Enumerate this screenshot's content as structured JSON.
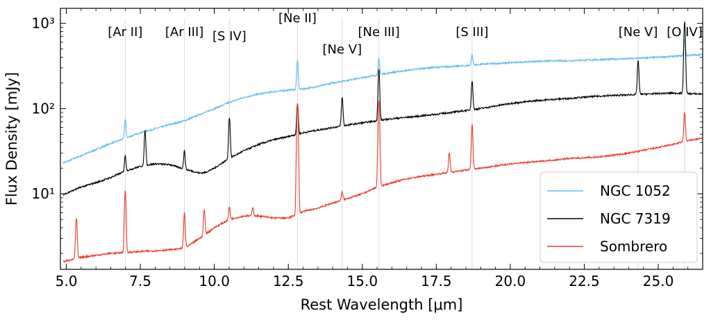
{
  "chart_data": {
    "type": "line",
    "xlabel": "Rest Wavelength [μm]",
    "ylabel": "Flux Density [mJy]",
    "xlim": [
      4.8,
      26.5
    ],
    "ylim": [
      1.3,
      1500
    ],
    "yscale": "log",
    "grid": false,
    "legend_position": "bottom-right",
    "x_ticks": [
      5.0,
      7.5,
      10.0,
      12.5,
      15.0,
      17.5,
      20.0,
      22.5,
      25.0
    ],
    "x_tick_labels": [
      "5.0",
      "7.5",
      "10.0",
      "12.5",
      "15.0",
      "17.5",
      "20.0",
      "22.5",
      "25.0"
    ],
    "y_ticks": [
      10,
      100,
      1000
    ],
    "y_tick_labels": [
      "10¹",
      "10²",
      "10³"
    ],
    "line_markers": [
      {
        "label": "[Ar II]",
        "x": 6.99
      },
      {
        "label": "[Ar III]",
        "x": 8.99
      },
      {
        "label": "[S IV]",
        "x": 10.51
      },
      {
        "label": "[Ne II]",
        "x": 12.81
      },
      {
        "label": "[Ne V]",
        "x": 14.32
      },
      {
        "label": "[Ne III]",
        "x": 15.56
      },
      {
        "label": "[S III]",
        "x": 18.71
      },
      {
        "label": "[Ne V]",
        "x": 24.32
      },
      {
        "label": "[O IV]",
        "x": 25.89
      }
    ],
    "series": [
      {
        "name": "NGC 1052",
        "color": "#5bbcf0",
        "x": [
          4.9,
          5.5,
          6.0,
          6.5,
          7.0,
          7.5,
          8.0,
          8.5,
          9.0,
          9.5,
          10.0,
          10.5,
          11.0,
          11.5,
          12.0,
          12.5,
          13.0,
          13.5,
          14.0,
          14.5,
          15.0,
          15.5,
          16.0,
          16.5,
          17.0,
          17.5,
          18.0,
          18.5,
          19.0,
          20.0,
          21.0,
          22.0,
          23.0,
          24.0,
          25.0,
          25.5,
          26.0,
          26.5
        ],
        "y": [
          23,
          28,
          33,
          39,
          45,
          52,
          58,
          65,
          72,
          85,
          100,
          118,
          135,
          148,
          158,
          165,
          170,
          182,
          200,
          215,
          230,
          248,
          265,
          280,
          295,
          305,
          312,
          318,
          330,
          345,
          360,
          365,
          375,
          385,
          400,
          410,
          420,
          430
        ],
        "peaks": [
          {
            "x": 6.99,
            "y": 75
          },
          {
            "x": 12.81,
            "y": 360
          },
          {
            "x": 15.56,
            "y": 380
          },
          {
            "x": 18.71,
            "y": 430
          },
          {
            "x": 25.89,
            "y": 650
          }
        ]
      },
      {
        "name": "NGC 7319",
        "color": "#000000",
        "x": [
          4.9,
          5.5,
          6.0,
          6.5,
          7.0,
          7.5,
          8.0,
          8.5,
          9.0,
          9.5,
          9.7,
          10.0,
          10.5,
          11.0,
          11.5,
          12.0,
          12.5,
          13.0,
          13.5,
          14.0,
          14.5,
          15.0,
          15.5,
          16.0,
          17.0,
          18.0,
          19.0,
          20.0,
          21.0,
          22.0,
          23.0,
          24.0,
          25.0,
          25.5,
          26.0,
          26.5
        ],
        "y": [
          9.8,
          12.0,
          13.5,
          15.5,
          18.5,
          21.0,
          22.5,
          22.0,
          19.5,
          17.5,
          17.8,
          20.0,
          26.0,
          32.0,
          38.0,
          43.0,
          47.0,
          52.0,
          56.0,
          60.0,
          64.0,
          68.0,
          72.0,
          76.0,
          82.0,
          90.0,
          100.0,
          115.0,
          125.0,
          132.0,
          140.0,
          145.0,
          150.0,
          152.0,
          150.0,
          148.0
        ],
        "peaks": [
          {
            "x": 6.99,
            "y": 28
          },
          {
            "x": 7.66,
            "y": 55
          },
          {
            "x": 8.99,
            "y": 32
          },
          {
            "x": 10.51,
            "y": 78
          },
          {
            "x": 12.81,
            "y": 115
          },
          {
            "x": 14.32,
            "y": 135
          },
          {
            "x": 15.56,
            "y": 290
          },
          {
            "x": 18.71,
            "y": 210
          },
          {
            "x": 24.32,
            "y": 370
          },
          {
            "x": 25.89,
            "y": 1050
          }
        ]
      },
      {
        "name": "Sombrero",
        "color": "#e8382d",
        "x": [
          4.9,
          5.5,
          6.0,
          6.5,
          7.0,
          7.5,
          8.0,
          8.5,
          9.0,
          9.5,
          10.0,
          10.5,
          11.0,
          11.5,
          12.0,
          12.5,
          13.0,
          13.5,
          14.0,
          14.5,
          15.0,
          15.5,
          16.0,
          16.5,
          17.0,
          17.5,
          18.0,
          18.5,
          19.0,
          20.0,
          21.0,
          22.0,
          23.0,
          24.0,
          25.0,
          25.5,
          26.0,
          26.5
        ],
        "y": [
          1.6,
          1.8,
          1.9,
          2.0,
          2.05,
          2.1,
          2.15,
          2.2,
          2.3,
          3.0,
          4.0,
          5.0,
          5.5,
          5.5,
          5.2,
          5.2,
          6.2,
          6.8,
          7.8,
          8.8,
          10.0,
          12.0,
          13.5,
          15.0,
          16.0,
          17.0,
          18.0,
          19.0,
          20.0,
          22.5,
          24.0,
          26.0,
          27.0,
          30.0,
          35.0,
          38.0,
          42.0,
          45.0
        ],
        "peaks": [
          {
            "x": 5.34,
            "y": 5.2
          },
          {
            "x": 6.99,
            "y": 11.0
          },
          {
            "x": 8.99,
            "y": 6.0
          },
          {
            "x": 9.66,
            "y": 6.5
          },
          {
            "x": 10.51,
            "y": 7.0
          },
          {
            "x": 11.3,
            "y": 7.0
          },
          {
            "x": 12.81,
            "y": 115
          },
          {
            "x": 14.32,
            "y": 10.5
          },
          {
            "x": 15.56,
            "y": 125
          },
          {
            "x": 17.94,
            "y": 30
          },
          {
            "x": 18.71,
            "y": 65
          },
          {
            "x": 25.89,
            "y": 90
          }
        ]
      }
    ]
  }
}
